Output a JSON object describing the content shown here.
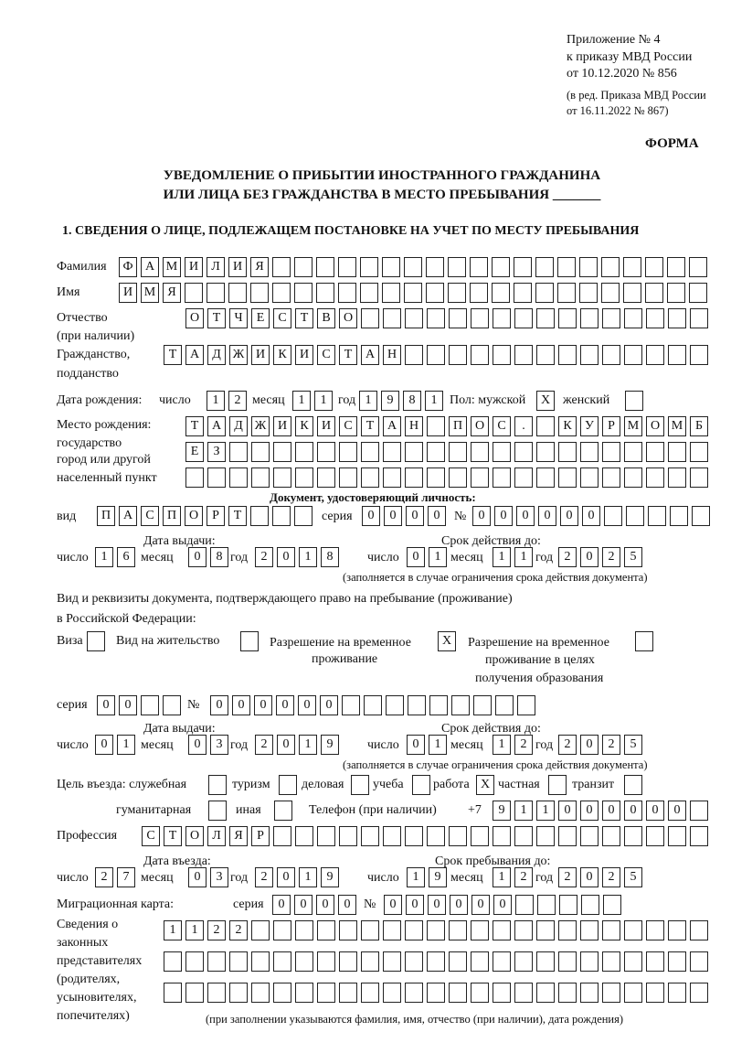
{
  "header": {
    "appendix": "Приложение № 4",
    "order_line": "к приказу МВД России",
    "order_date": "от 10.12.2020 № 856",
    "revision_line1": "(в ред. Приказа МВД России",
    "revision_line2": "от 16.11.2022 № 867)",
    "form_label": "ФОРМА",
    "title_line1": "УВЕДОМЛЕНИЕ О ПРИБЫТИИ ИНОСТРАННОГО ГРАЖДАНИНА",
    "title_line2": "ИЛИ ЛИЦА БЕЗ ГРАЖДАНСТВА В МЕСТО ПРЕБЫВАНИЯ _______",
    "section_title": "1. СВЕДЕНИЯ О ЛИЦЕ, ПОДЛЕЖАЩЕМ ПОСТАНОВКЕ НА УЧЕТ ПО МЕСТУ ПРЕБЫВАНИЯ"
  },
  "labels": {
    "surname": "Фамилия",
    "name": "Имя",
    "patronymic": "Отчество",
    "patronymic_note": "(при наличии)",
    "citizenship": "Гражданство,",
    "citizenship2": "подданство",
    "birth_date": "Дата рождения:",
    "day": "число",
    "month": "месяц",
    "year": "год",
    "sex": "Пол: мужской",
    "female": "женский",
    "birth_place": "Место рождения:",
    "birth_place2": "государство",
    "birth_place3": "город или другой",
    "birth_place4": "населенный пункт",
    "id_doc": "Документ, удостоверяющий личность:",
    "doc_kind": "вид",
    "series": "серия",
    "number": "№",
    "issue_date": "Дата выдачи:",
    "valid_until": "Срок действия до:",
    "validity_note": "(заполняется в случае ограничения срока действия документа)",
    "stay_doc1": "Вид и реквизиты документа, подтверждающего право на пребывание (проживание)",
    "stay_doc2": "в Российской Федерации:",
    "visa": "Виза",
    "residence_permit": "Вид на жительство",
    "temp_permit1": "Разрешение на временное",
    "temp_permit2": "проживание",
    "edu_permit1": "Разрешение на временное",
    "edu_permit2": "проживание в целях",
    "edu_permit3": "получения образования",
    "purpose": "Цель въезда: служебная",
    "tourism": "туризм",
    "business": "деловая",
    "study": "учеба",
    "work": "работа",
    "private": "частная",
    "transit": "транзит",
    "humanitarian": "гуманитарная",
    "other": "иная",
    "phone": "Телефон (при наличии)",
    "phone_prefix": "+7",
    "profession": "Профессия",
    "entry_date": "Дата въезда:",
    "stay_until": "Срок пребывания до:",
    "migration_card": "Миграционная карта:",
    "guardians1": "Сведения о",
    "guardians2": "законных",
    "guardians3": "представителях",
    "guardians4": "(родителях,",
    "guardians5": "усыновителях,",
    "guardians6": "попечителях)",
    "guardians_note": "(при заполнении указываются фамилия, имя, отчество (при наличии), дата рождения)"
  },
  "fields": {
    "surname": "ФАМИЛИЯ",
    "name": "ИМЯ",
    "patronymic": "ОТЧЕСТВО",
    "citizenship": "ТАДЖИКИСТАН",
    "birth_day": "12",
    "birth_month": "11",
    "birth_year": "1981",
    "sex_male": "X",
    "sex_female": "",
    "birth_place_1": "ТАДЖИКИСТАН ПОС. КУРМОМБ",
    "birth_place_2": "ЕЗ",
    "birth_place_3": "",
    "doc_kind": "ПАСПОРТ",
    "doc_series": "0000",
    "doc_number": "000000",
    "doc_issue_day": "16",
    "doc_issue_month": "08",
    "doc_issue_year": "2018",
    "doc_valid_day": "01",
    "doc_valid_month": "11",
    "doc_valid_year": "2025",
    "stay_visa": "",
    "stay_residence": "",
    "stay_temp": "X",
    "stay_edu": "",
    "stay_series": "00",
    "stay_number": "000000",
    "stay_issue_day": "01",
    "stay_issue_month": "03",
    "stay_issue_year": "2019",
    "stay_valid_day": "01",
    "stay_valid_month": "12",
    "stay_valid_year": "2025",
    "purpose_official": "",
    "purpose_tourism": "",
    "purpose_business": "",
    "purpose_study": "",
    "purpose_work": "X",
    "purpose_private": "",
    "purpose_transit": "",
    "purpose_humanitarian": "",
    "purpose_other": "",
    "phone": "911000000",
    "profession": "СТОЛЯР",
    "entry_day": "27",
    "entry_month": "03",
    "entry_year": "2019",
    "stay_until_day": "19",
    "stay_until_month": "12",
    "stay_until_year": "2025",
    "migration_series": "0000",
    "migration_number": "000000",
    "guardians_1": "1122",
    "guardians_2": "",
    "guardians_3": ""
  }
}
